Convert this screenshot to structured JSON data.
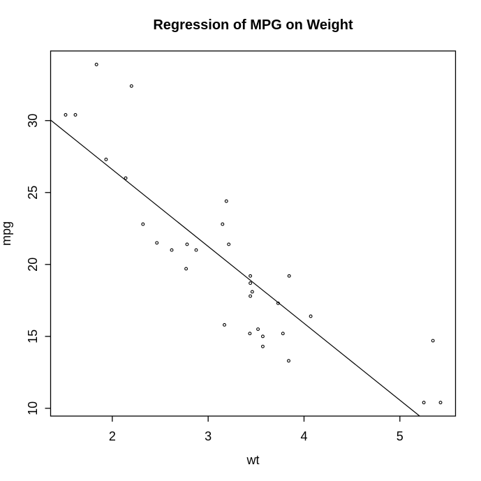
{
  "chart_data": {
    "type": "scatter",
    "title": "Regression of MPG on Weight",
    "xlabel": "wt",
    "ylabel": "mpg",
    "x_ticks": [
      2,
      3,
      4,
      5
    ],
    "y_ticks": [
      10,
      15,
      20,
      25,
      30
    ],
    "xlim": [
      1.3566,
      5.5804
    ],
    "ylim": [
      9.46,
      34.84
    ],
    "grid": false,
    "legend": "none",
    "marker": "open-circle",
    "points": [
      [
        2.62,
        21.0
      ],
      [
        2.875,
        21.0
      ],
      [
        2.32,
        22.8
      ],
      [
        3.215,
        21.4
      ],
      [
        3.44,
        18.7
      ],
      [
        3.46,
        18.1
      ],
      [
        3.57,
        14.3
      ],
      [
        3.19,
        24.4
      ],
      [
        3.15,
        22.8
      ],
      [
        3.44,
        19.2
      ],
      [
        3.44,
        17.8
      ],
      [
        4.07,
        16.4
      ],
      [
        3.73,
        17.3
      ],
      [
        3.78,
        15.2
      ],
      [
        5.25,
        10.4
      ],
      [
        5.424,
        10.4
      ],
      [
        5.345,
        14.7
      ],
      [
        2.2,
        32.4
      ],
      [
        1.615,
        30.4
      ],
      [
        1.835,
        33.9
      ],
      [
        2.465,
        21.5
      ],
      [
        3.52,
        15.5
      ],
      [
        3.435,
        15.2
      ],
      [
        3.84,
        13.3
      ],
      [
        3.845,
        19.2
      ],
      [
        1.935,
        27.3
      ],
      [
        2.14,
        26.0
      ],
      [
        1.513,
        30.4
      ],
      [
        3.17,
        15.8
      ],
      [
        2.77,
        19.7
      ],
      [
        3.57,
        15.0
      ],
      [
        2.78,
        21.4
      ]
    ],
    "regression_line": {
      "intercept": 37.285,
      "slope": -5.344
    },
    "colors": {
      "foreground": "#000000",
      "background": "#ffffff"
    }
  }
}
